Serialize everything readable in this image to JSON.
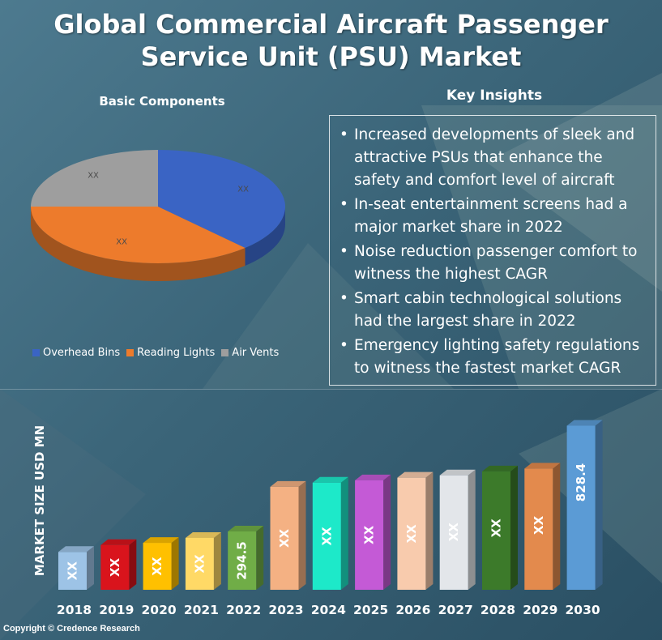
{
  "title_lines": [
    "Global Commercial Aircraft Passenger",
    "Service Unit (PSU) Market"
  ],
  "pie_title": "Basic Components",
  "insights_title": "Key Insights",
  "insights": [
    "Increased developments of sleek and attractive PSUs that enhance the safety and comfort level of aircraft",
    "In-seat entertainment screens had a major market share in 2022",
    "Noise reduction passenger comfort to witness the highest CAGR",
    "Smart cabin technological solutions had the largest share in 2022",
    "Emergency lighting safety regulations to witness the fastest market CAGR"
  ],
  "copyright": "Copyright © Credence Research",
  "chart_data": [
    {
      "type": "pie",
      "title": "Basic Components",
      "slices": [
        {
          "name": "Overhead Bins",
          "value": 38,
          "label": "XX",
          "color": "#3a64c4"
        },
        {
          "name": "Reading Lights",
          "value": 37,
          "label": "XX",
          "color": "#ed7b2c"
        },
        {
          "name": "Air Vents",
          "value": 25,
          "label": "XX",
          "color": "#9e9e9e"
        }
      ],
      "legend_position": "bottom"
    },
    {
      "type": "bar",
      "ylabel": "MARKET SIZE USD MN",
      "categories": [
        "2018",
        "2019",
        "2020",
        "2021",
        "2022",
        "2023",
        "2024",
        "2025",
        "2026",
        "2027",
        "2028",
        "2029",
        "2030"
      ],
      "values": [
        191,
        226,
        237,
        262,
        294.5,
        520,
        541,
        553,
        566,
        578,
        598,
        612,
        828.4
      ],
      "data_labels": [
        "XX",
        "XX",
        "XX",
        "XX",
        "294.5",
        "XX",
        "XX",
        "XX",
        "XX",
        "XX",
        "XX",
        "XX",
        "828.4"
      ],
      "colors": [
        "#9dc3e6",
        "#d9141c",
        "#ffc000",
        "#ffd966",
        "#70ad47",
        "#f4b183",
        "#1de9c9",
        "#c45ad6",
        "#f8cbad",
        "#e3e6ea",
        "#3c7a2a",
        "#e38a4d",
        "#5b9bd5"
      ],
      "ylim": [
        0,
        900
      ]
    }
  ]
}
